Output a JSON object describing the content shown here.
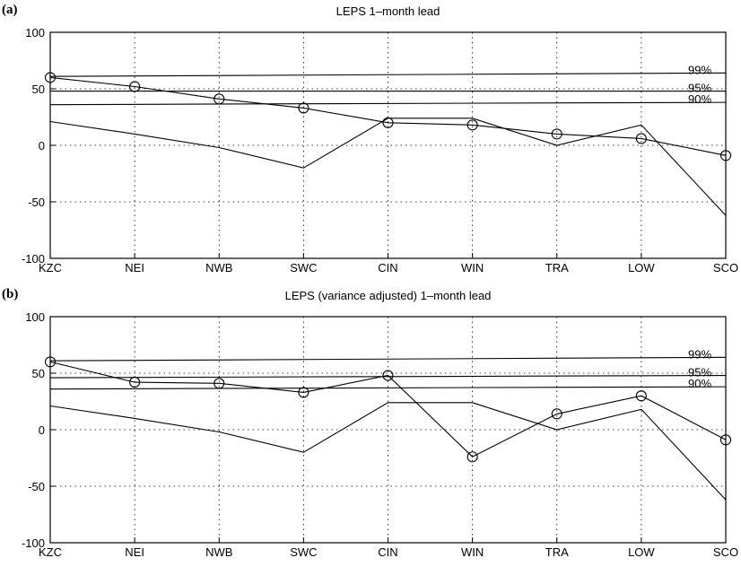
{
  "chart_data": [
    {
      "type": "line",
      "panel_label": "(a)",
      "title": "LEPS 1–month lead",
      "categories": [
        "KZC",
        "NEI",
        "NWB",
        "SWC",
        "CIN",
        "WIN",
        "TRA",
        "LOW",
        "SCO"
      ],
      "yticks": [
        "100",
        "50",
        "0",
        "-50",
        "-100"
      ],
      "ylim": [
        -100,
        100
      ],
      "grid": true,
      "series": [
        {
          "marker": "circle",
          "values": [
            60,
            52,
            41,
            33,
            20,
            18,
            10,
            6,
            -9
          ]
        },
        {
          "marker": "none",
          "values": [
            21,
            10,
            -2,
            -20,
            24,
            24,
            0,
            18,
            -62
          ]
        }
      ],
      "significance_lines": [
        {
          "label": "99%",
          "start": 61,
          "end": 64
        },
        {
          "label": "95%",
          "start": 48,
          "end": 48
        },
        {
          "label": "90%",
          "start": 36,
          "end": 38
        }
      ]
    },
    {
      "type": "line",
      "panel_label": "(b)",
      "title": "LEPS (variance adjusted) 1–month lead",
      "categories": [
        "KZC",
        "NEI",
        "NWB",
        "SWC",
        "CIN",
        "WIN",
        "TRA",
        "LOW",
        "SCO"
      ],
      "yticks": [
        "100",
        "50",
        "0",
        "-50",
        "-100"
      ],
      "ylim": [
        -100,
        100
      ],
      "grid": true,
      "series": [
        {
          "marker": "circle",
          "values": [
            60,
            42,
            41,
            33,
            48,
            -24,
            14,
            30,
            -9
          ]
        },
        {
          "marker": "none",
          "values": [
            21,
            10,
            -2,
            -20,
            24,
            24,
            0,
            18,
            -62
          ]
        }
      ],
      "significance_lines": [
        {
          "label": "99%",
          "start": 61,
          "end": 64
        },
        {
          "label": "95%",
          "start": 46,
          "end": 48
        },
        {
          "label": "90%",
          "start": 36,
          "end": 38
        }
      ]
    }
  ]
}
